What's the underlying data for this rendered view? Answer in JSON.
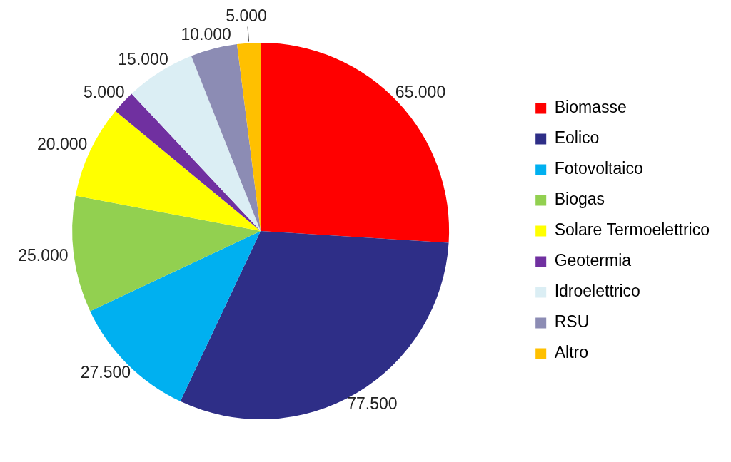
{
  "chart_data": {
    "type": "pie",
    "categories": [
      "Biomasse",
      "Eolico",
      "Fotovoltaico",
      "Biogas",
      "Solare Termoelettrico",
      "Geotermia",
      "Idroelettrico",
      "RSU",
      "Altro"
    ],
    "values": [
      65000,
      77500,
      27500,
      25000,
      20000,
      5000,
      15000,
      10000,
      5000
    ],
    "value_labels": [
      "65.000",
      "77.500",
      "27.500",
      "25.000",
      "20.000",
      "5.000",
      "15.000",
      "10.000",
      "5.000"
    ],
    "colors": [
      "#ff0000",
      "#2e2e87",
      "#00b0f0",
      "#92d050",
      "#ffff00",
      "#7030a0",
      "#dbeef4",
      "#8c8cb4",
      "#ffc000"
    ],
    "data_labels": true,
    "legend": "right"
  }
}
